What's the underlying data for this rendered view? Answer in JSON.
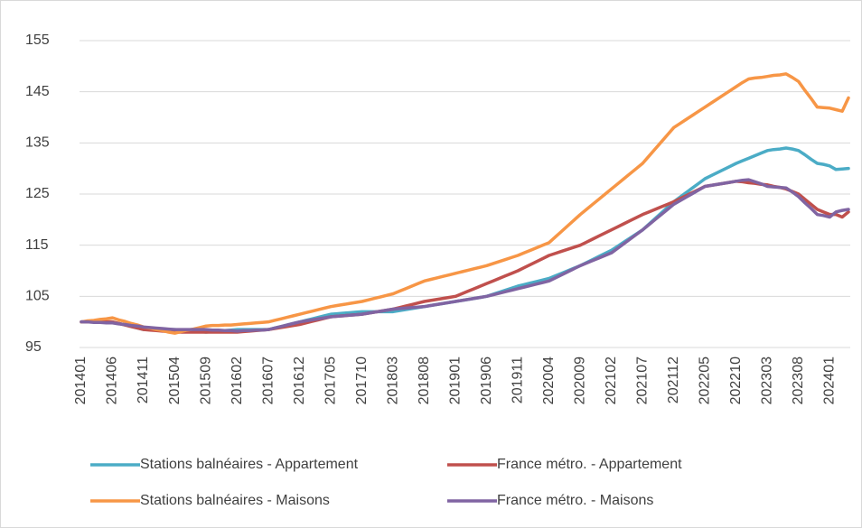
{
  "chart_data": {
    "type": "line",
    "categories": [
      "201401",
      null,
      null,
      null,
      null,
      "201406",
      null,
      null,
      null,
      null,
      "201411",
      null,
      null,
      null,
      null,
      "201504",
      null,
      null,
      null,
      null,
      "201509",
      null,
      null,
      null,
      null,
      "201602",
      null,
      null,
      null,
      null,
      "201607",
      null,
      null,
      null,
      null,
      "201612",
      null,
      null,
      null,
      null,
      "201705",
      null,
      null,
      null,
      null,
      "201710",
      null,
      null,
      null,
      null,
      "201803",
      null,
      null,
      null,
      null,
      "201808",
      null,
      null,
      null,
      null,
      "201901",
      null,
      null,
      null,
      null,
      "201906",
      null,
      null,
      null,
      null,
      "201911",
      null,
      null,
      null,
      null,
      "202004",
      null,
      null,
      null,
      null,
      "202009",
      null,
      null,
      null,
      null,
      "202102",
      null,
      null,
      null,
      null,
      "202107",
      null,
      null,
      null,
      null,
      "202112",
      null,
      null,
      null,
      null,
      "202205",
      null,
      null,
      null,
      null,
      "202210",
      null,
      null,
      null,
      null,
      "202303",
      null,
      null,
      null,
      null,
      "202308",
      null,
      null,
      null,
      null,
      "202401",
      null,
      null,
      null
    ],
    "series": [
      {
        "name": "Stations balnéaires - Appartement",
        "color": "#4bacc6",
        "values": [
          100,
          100,
          100,
          100,
          100,
          100,
          99.7,
          99.4,
          99.1,
          98.8,
          98.5,
          98.5,
          98.5,
          98.5,
          98.5,
          98.5,
          98.4,
          98.3,
          98.2,
          98.1,
          98,
          98.1,
          98.2,
          98.3,
          98.4,
          98.5,
          98.5,
          98.5,
          98.5,
          98.5,
          98.5,
          98.8,
          99.1,
          99.4,
          99.7,
          100,
          100.3,
          100.6,
          100.9,
          101.2,
          101.5,
          101.6,
          101.7,
          101.8,
          101.9,
          102,
          102,
          102,
          102,
          102,
          102,
          102.2,
          102.4,
          102.6,
          102.8,
          103,
          103.2,
          103.4,
          103.6,
          103.8,
          104,
          104.2,
          104.4,
          104.6,
          104.8,
          105,
          105.4,
          105.8,
          106.2,
          106.6,
          107,
          107.3,
          107.6,
          107.9,
          108.2,
          108.5,
          109,
          109.5,
          110,
          110.5,
          111,
          111.6,
          112.2,
          112.8,
          113.4,
          114,
          114.8,
          115.6,
          116.4,
          117.2,
          118,
          119.1,
          120.2,
          121.3,
          122.4,
          123.5,
          124.4,
          125.3,
          126.2,
          127.1,
          128,
          128.6,
          129.2,
          129.8,
          130.4,
          131,
          131.5,
          132,
          132.5,
          133,
          133.5,
          133.7,
          133.8,
          134,
          133.8,
          133.5,
          132.7,
          131.8,
          131,
          130.8,
          130.5,
          129.8,
          129.9,
          130
        ]
      },
      {
        "name": "France métro. - Appartement",
        "color": "#c0504d",
        "values": [
          100,
          100,
          100,
          100,
          100,
          100,
          99.7,
          99.4,
          99.1,
          98.8,
          98.5,
          98.4,
          98.3,
          98.2,
          98.1,
          98,
          98,
          98,
          98,
          98,
          98,
          98,
          98,
          98,
          98,
          98,
          98.1,
          98.2,
          98.3,
          98.4,
          98.5,
          98.7,
          98.9,
          99.1,
          99.3,
          99.5,
          99.8,
          100.1,
          100.4,
          100.7,
          101,
          101.1,
          101.2,
          101.3,
          101.4,
          101.5,
          101.7,
          101.9,
          102.1,
          102.3,
          102.5,
          102.8,
          103.1,
          103.4,
          103.7,
          104,
          104.2,
          104.4,
          104.6,
          104.8,
          105,
          105.5,
          106,
          106.5,
          107,
          107.5,
          108,
          108.5,
          109,
          109.5,
          110,
          110.6,
          111.2,
          111.8,
          112.4,
          113,
          113.4,
          113.8,
          114.2,
          114.6,
          115,
          115.6,
          116.2,
          116.8,
          117.4,
          118,
          118.6,
          119.2,
          119.8,
          120.4,
          121,
          121.5,
          122,
          122.5,
          123,
          123.5,
          124.1,
          124.7,
          125.3,
          125.9,
          126.5,
          126.7,
          126.9,
          127.1,
          127.3,
          127.5,
          127.4,
          127.2,
          127.1,
          126.9,
          126.8,
          126.5,
          126.3,
          126,
          125.5,
          125,
          124,
          123,
          122,
          121.5,
          121,
          121,
          120.5,
          121.5
        ]
      },
      {
        "name": "Stations balnéaires - Maisons",
        "color": "#f79646",
        "values": [
          100,
          100.2,
          100.3,
          100.5,
          100.6,
          100.8,
          100.4,
          100.1,
          99.7,
          99.4,
          99,
          98.8,
          98.5,
          98.3,
          98,
          97.8,
          98.1,
          98.4,
          98.6,
          98.9,
          99.2,
          99.3,
          99.3,
          99.4,
          99.4,
          99.5,
          99.6,
          99.7,
          99.8,
          99.9,
          100,
          100.3,
          100.6,
          100.9,
          101.2,
          101.5,
          101.8,
          102.1,
          102.4,
          102.7,
          103,
          103.2,
          103.4,
          103.6,
          103.8,
          104,
          104.3,
          104.6,
          104.9,
          105.2,
          105.5,
          106,
          106.5,
          107,
          107.5,
          108,
          108.3,
          108.6,
          108.9,
          109.2,
          109.5,
          109.8,
          110.1,
          110.4,
          110.7,
          111,
          111.4,
          111.8,
          112.2,
          112.6,
          113,
          113.5,
          114,
          114.5,
          115,
          115.5,
          116.6,
          117.7,
          118.8,
          119.9,
          121,
          122,
          123,
          124,
          125,
          126,
          127,
          128,
          129,
          130,
          131,
          132.4,
          133.8,
          135.2,
          136.6,
          138,
          138.8,
          139.6,
          140.4,
          141.2,
          142,
          142.8,
          143.6,
          144.4,
          145.2,
          146,
          146.8,
          147.5,
          147.7,
          147.8,
          148,
          148.2,
          148.3,
          148.5,
          147.8,
          147,
          145.3,
          143.7,
          142,
          141.9,
          141.8,
          141.5,
          141.2,
          143.8
        ]
      },
      {
        "name": "France métro. - Maisons",
        "color": "#8064a2",
        "values": [
          100,
          100,
          99.9,
          99.9,
          99.8,
          99.8,
          99.6,
          99.5,
          99.3,
          99.2,
          99,
          98.9,
          98.8,
          98.7,
          98.6,
          98.5,
          98.5,
          98.5,
          98.5,
          98.5,
          98.5,
          98.4,
          98.4,
          98.3,
          98.3,
          98.2,
          98.3,
          98.3,
          98.4,
          98.4,
          98.5,
          98.8,
          99.1,
          99.4,
          99.7,
          100,
          100.2,
          100.4,
          100.6,
          100.8,
          101,
          101.1,
          101.2,
          101.3,
          101.4,
          101.5,
          101.7,
          101.9,
          102.1,
          102.3,
          102.5,
          102.6,
          102.7,
          102.8,
          102.9,
          103,
          103.2,
          103.4,
          103.6,
          103.8,
          104,
          104.2,
          104.4,
          104.6,
          104.8,
          105,
          105.3,
          105.6,
          105.9,
          106.2,
          106.5,
          106.8,
          107.1,
          107.4,
          107.7,
          108,
          108.6,
          109.2,
          109.8,
          110.4,
          111,
          111.5,
          112,
          112.5,
          113,
          113.5,
          114.4,
          115.3,
          116.2,
          117.1,
          118,
          119,
          120,
          121,
          122,
          123,
          123.7,
          124.4,
          125.1,
          125.8,
          126.5,
          126.7,
          126.9,
          127.1,
          127.3,
          127.5,
          127.7,
          127.8,
          127.4,
          127,
          126.5,
          126.4,
          126.3,
          126.2,
          125.4,
          124.5,
          123.3,
          122.2,
          121,
          120.8,
          120.5,
          121.5,
          121.8,
          122
        ]
      }
    ],
    "ylim": [
      95,
      155
    ],
    "yticks": [
      95,
      105,
      115,
      125,
      135,
      145,
      155
    ],
    "grid": true,
    "legend": "bottom"
  }
}
